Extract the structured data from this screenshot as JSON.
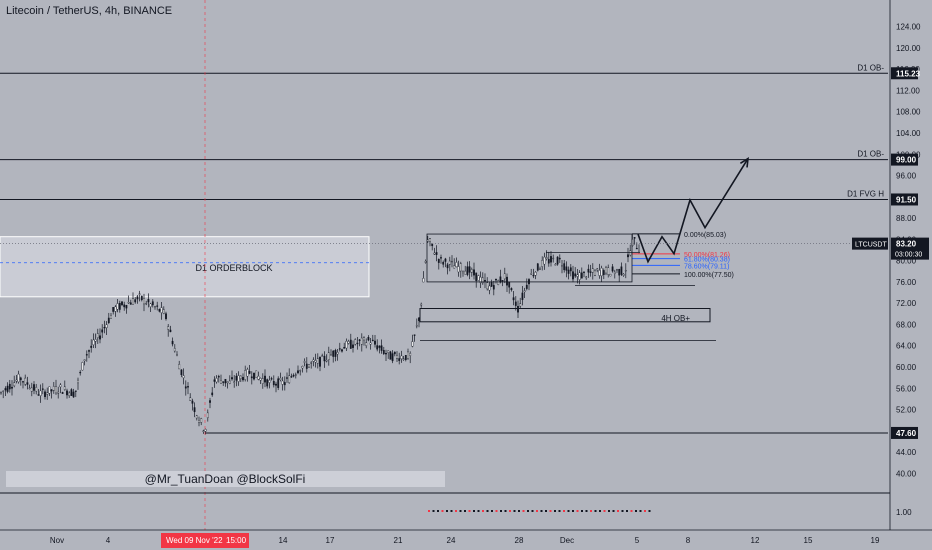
{
  "header": {
    "title": "Litecoin / TetherUS, 4h, BINANCE"
  },
  "chart_data": {
    "type": "candlestick",
    "symbol": "LTCUSDT",
    "ylim": [
      38,
      126
    ],
    "price_ticks": [
      "124.00",
      "120.00",
      "116.00",
      "112.00",
      "108.00",
      "104.00",
      "100.00",
      "96.00",
      "92.00",
      "88.00",
      "84.00",
      "80.00",
      "76.00",
      "72.00",
      "68.00",
      "64.00",
      "60.00",
      "56.00",
      "52.00",
      "48.00",
      "44.00",
      "40.00"
    ],
    "lower_pane_tick": "1.00",
    "date_ticks": [
      "Nov",
      "4",
      "7",
      "14",
      "17",
      "21",
      "24",
      "28",
      "Dec",
      "5",
      "8",
      "12",
      "15",
      "19"
    ],
    "cursor_date": "Wed 09 Nov '22",
    "cursor_time": "15:00",
    "current": {
      "symbol": "LTCUSDT",
      "price": 83.2,
      "price_label": "83.20",
      "countdown": "03:00:30"
    },
    "levels": [
      {
        "price": 115.23,
        "label": "D1 OB-",
        "value_label": "115.23"
      },
      {
        "price": 99.0,
        "label": "D1 OB-",
        "value_label": "99.00"
      },
      {
        "price": 91.5,
        "label": "D1 FVG H",
        "value_label": "91.50"
      },
      {
        "price": 47.6,
        "label": "",
        "value_label": "47.60"
      }
    ],
    "zones": [
      {
        "label": "D1 ORDERBLOCK",
        "top": 84.5,
        "bottom": 73.2,
        "mid": 79.6
      },
      {
        "label": "4H OB+",
        "top": 71.0,
        "bottom": 68.5
      }
    ],
    "fib": [
      {
        "label": "0.00%(85.03)",
        "price": 85.03,
        "color": "#131722"
      },
      {
        "label": "50.00%(81.26)",
        "price": 81.26,
        "color": "#f23645"
      },
      {
        "label": "61.80%(80.38)",
        "price": 80.38,
        "color": "#2962ff"
      },
      {
        "label": "78.60%(79.11)",
        "price": 79.11,
        "color": "#2962ff"
      },
      {
        "label": "100.00%(77.50)",
        "price": 77.5,
        "color": "#131722"
      }
    ],
    "watermark": "@Mr_TuanDoan @BlockSolFi",
    "colors": {
      "background": "#b2b5be",
      "candle": "#131722",
      "red_label": "#f23645",
      "box_label": "#131722"
    }
  }
}
